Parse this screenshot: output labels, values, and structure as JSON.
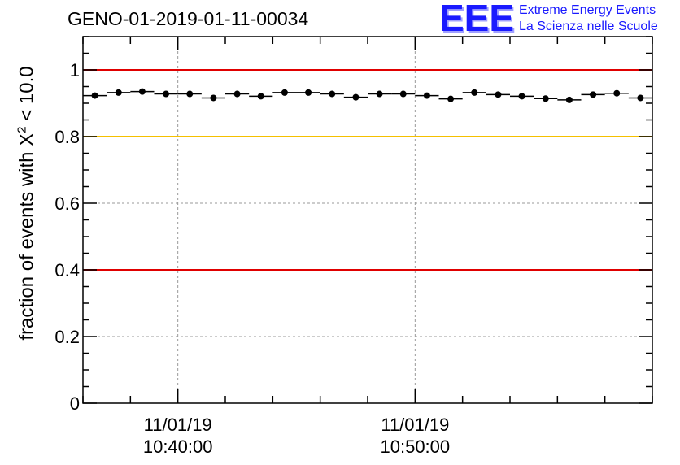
{
  "title": "GENO-01-2019-01-11-00034",
  "logo": {
    "letters": "EEE",
    "line1": "Extreme Energy Events",
    "line2": "La Scienza nelle Scuole",
    "color": "#1a1aff"
  },
  "chart_data": {
    "type": "scatter",
    "ylabel_prefix": "fraction of events with X",
    "ylabel_sup": "2",
    "ylabel_suffix": " < 10.0",
    "xlabel": "",
    "ylim": [
      0,
      1.1
    ],
    "yticks": [
      "0",
      "0.2",
      "0.4",
      "0.6",
      "0.8",
      "1"
    ],
    "ytick_values": [
      0,
      0.2,
      0.4,
      0.6,
      0.8,
      1.0
    ],
    "xlim_minutes": [
      0,
      24
    ],
    "xticks": [
      {
        "minute": 4,
        "date": "11/01/19",
        "time": "10:40:00"
      },
      {
        "minute": 14,
        "date": "11/01/19",
        "time": "10:50:00"
      }
    ],
    "grid": true,
    "reference_lines": [
      {
        "y": 1.0,
        "color": "#e00000"
      },
      {
        "y": 0.8,
        "color": "#f5c000"
      },
      {
        "y": 0.4,
        "color": "#e00000"
      }
    ],
    "x_minutes": [
      0.5,
      1.5,
      2.5,
      3.5,
      4.5,
      5.5,
      6.5,
      7.5,
      8.5,
      9.5,
      10.5,
      11.5,
      12.5,
      13.5,
      14.5,
      15.5,
      16.5,
      17.5,
      18.5,
      19.5,
      20.5,
      21.5,
      22.5,
      23.5
    ],
    "values": [
      0.923,
      0.932,
      0.935,
      0.928,
      0.928,
      0.916,
      0.928,
      0.921,
      0.932,
      0.932,
      0.928,
      0.918,
      0.928,
      0.928,
      0.923,
      0.913,
      0.932,
      0.926,
      0.921,
      0.914,
      0.91,
      0.926,
      0.93,
      0.916
    ]
  }
}
